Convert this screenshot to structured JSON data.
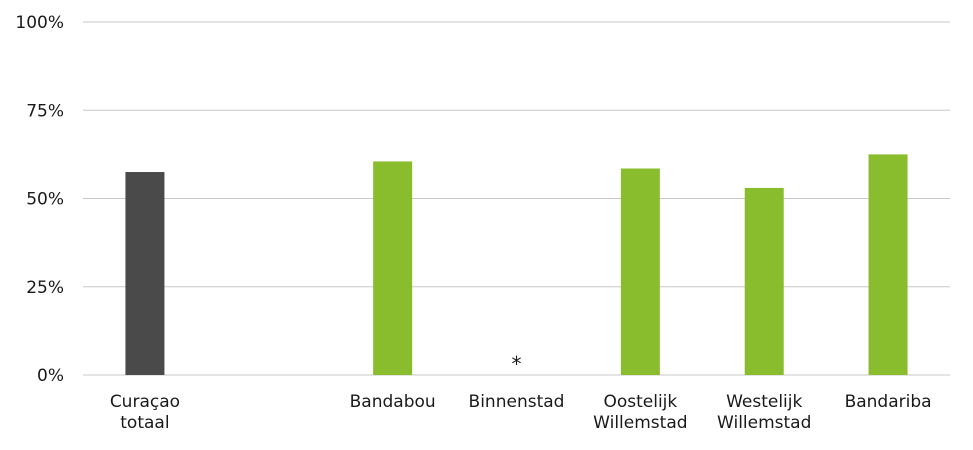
{
  "chart_data": {
    "type": "bar",
    "categories": [
      [
        "Curaçao",
        "totaal"
      ],
      [
        ""
      ],
      [
        "Bandabou"
      ],
      [
        "Binnenstad"
      ],
      [
        "Oostelijk",
        "Willemstad"
      ],
      [
        "Westelijk",
        "Willemstad"
      ],
      [
        "Bandariba"
      ]
    ],
    "values": [
      57.5,
      null,
      60.5,
      null,
      58.5,
      53,
      62.5
    ],
    "bar_colors": [
      "#4a4a4a",
      "#8abd2e",
      "#8abd2e",
      "#8abd2e",
      "#8abd2e",
      "#8abd2e",
      "#8abd2e"
    ],
    "markers": [
      null,
      null,
      null,
      "*",
      null,
      null,
      null
    ],
    "ylim": [
      0,
      100
    ],
    "yticks": [
      0,
      25,
      50,
      75,
      100
    ],
    "ytick_labels": [
      "0%",
      "25%",
      "50%",
      "75%",
      "100%"
    ],
    "grid": true,
    "title": "",
    "xlabel": "",
    "ylabel": ""
  }
}
